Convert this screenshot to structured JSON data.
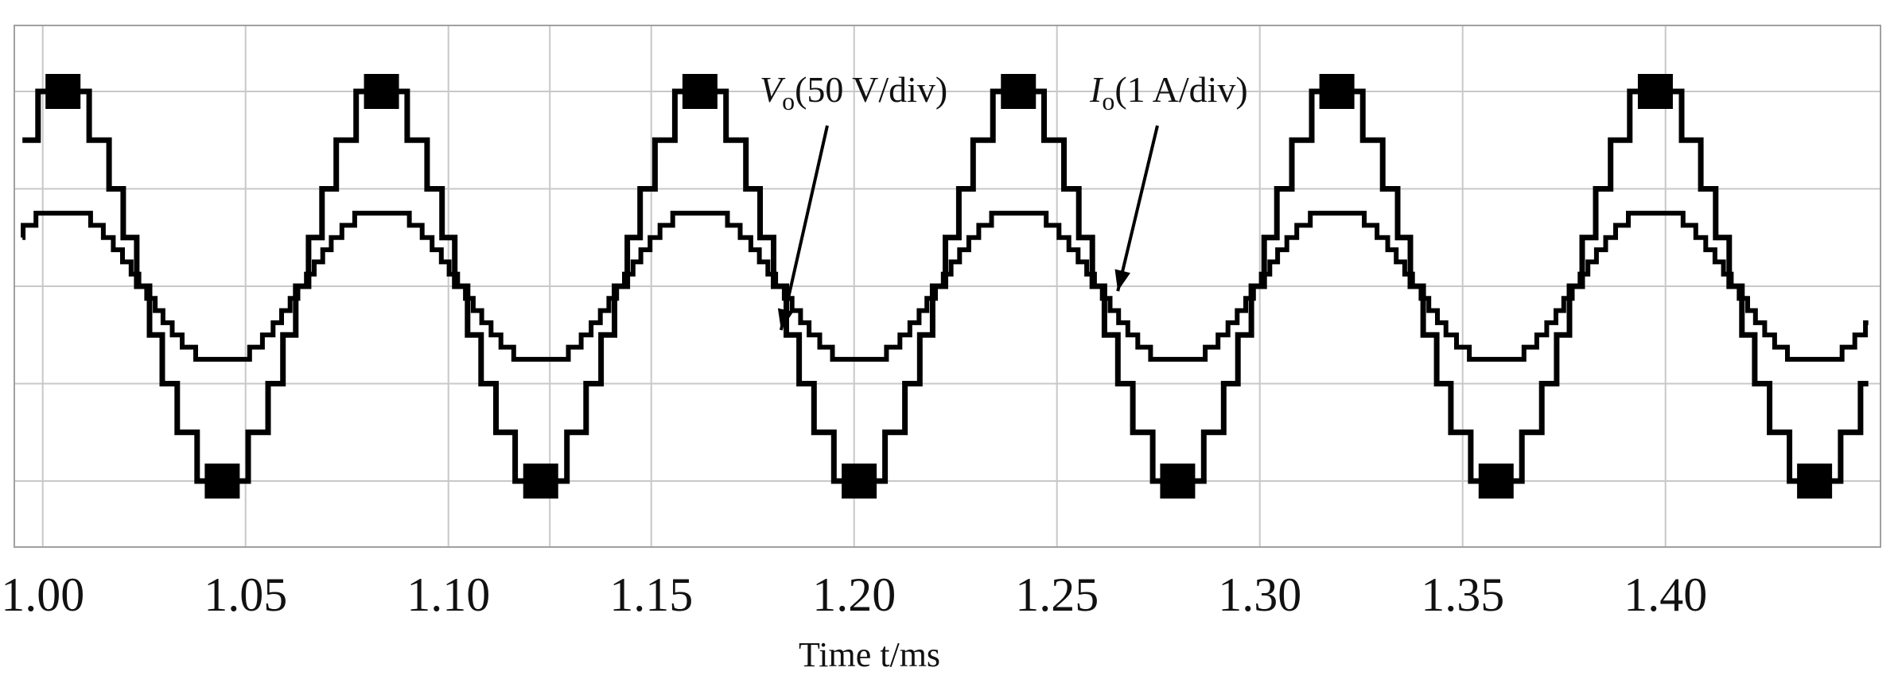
{
  "chart_data": {
    "type": "line",
    "title": "",
    "xlabel": "Time t/ms",
    "ylabel": "",
    "xlim": [
      0.993,
      1.453
    ],
    "ylim": [
      -2.75,
      2.75
    ],
    "x_ticks": [
      "1.00",
      "1.05",
      "1.10",
      "1.15",
      "1.20",
      "1.25",
      "1.30",
      "1.35",
      "1.40"
    ],
    "grid": true,
    "legend": "none",
    "period_ms": 0.0785,
    "series": [
      {
        "id": "vo",
        "waveform": "staircase",
        "levels": 5,
        "phase_deg": -90,
        "peak_div": 2.0,
        "x": [
          1.0,
          1.0196,
          1.0393,
          1.0589,
          1.0785,
          1.0981,
          1.1178,
          1.1374,
          1.157,
          1.1766,
          1.1963,
          1.2159,
          1.2355,
          1.2551,
          1.2748,
          1.2944,
          1.314,
          1.3336,
          1.3533,
          1.3729,
          1.3925,
          1.4121,
          1.4318,
          1.4514
        ],
        "y": [
          1.76,
          0.02,
          -1.73,
          -0.05,
          1.76,
          0.02,
          -1.73,
          -0.05,
          1.76,
          0.02,
          -1.73,
          -0.05,
          1.76,
          0.02,
          -1.73,
          -0.05,
          1.76,
          0.02,
          -1.73,
          -0.05,
          1.76,
          0.02,
          -1.73,
          -0.05
        ]
      },
      {
        "id": "io",
        "waveform": "stepped-sine",
        "phase_deg": -110,
        "peak_div": 0.8,
        "x": [
          1.0,
          1.0196,
          1.0393,
          1.0589,
          1.0785,
          1.0981,
          1.1178,
          1.1374,
          1.157,
          1.1766,
          1.1963,
          1.2159,
          1.2355,
          1.2551,
          1.2748,
          1.2944,
          1.314,
          1.3336,
          1.3533,
          1.3729,
          1.3925,
          1.4121,
          1.4318,
          1.4514
        ],
        "y": [
          0.75,
          0.27,
          -0.75,
          -0.27,
          0.75,
          0.27,
          -0.75,
          -0.27,
          0.75,
          0.27,
          -0.75,
          -0.27,
          0.75,
          0.27,
          -0.75,
          -0.27,
          0.75,
          0.27,
          -0.75,
          -0.27,
          0.75,
          0.27,
          -0.75,
          -0.27
        ]
      }
    ],
    "annotations": [
      {
        "symbol": "V",
        "subscript": "o",
        "text": "(50 V/div)",
        "points_to": "vo",
        "arrow_tip": [
          1.182,
          -0.45
        ]
      },
      {
        "symbol": "I",
        "subscript": "o",
        "text": "(1 A/div)",
        "points_to": "io",
        "arrow_tip": [
          1.265,
          -0.05
        ]
      }
    ]
  }
}
